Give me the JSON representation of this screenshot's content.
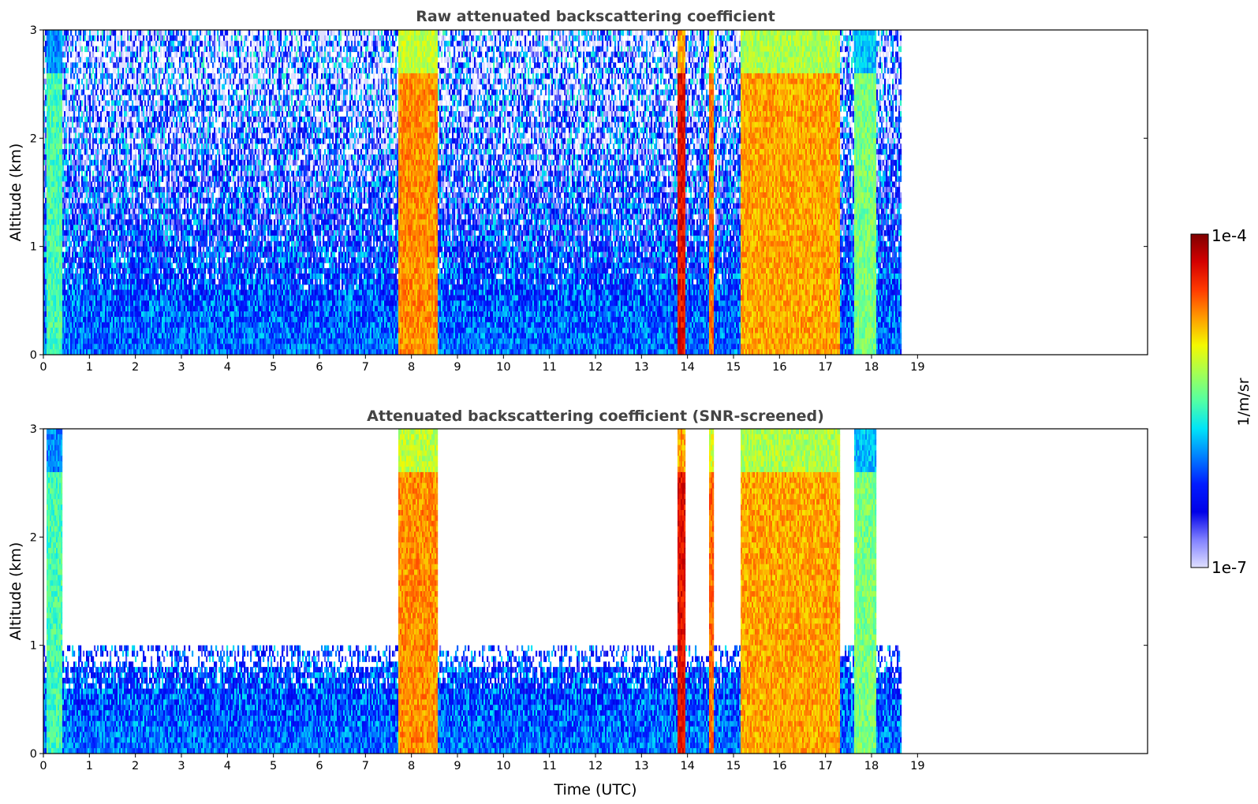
{
  "chart_data": [
    {
      "type": "heatmap",
      "title": "Raw attenuated backscattering coefficient",
      "ylabel": "Altitude (km)",
      "xlabel": "",
      "xlim": [
        0,
        24
      ],
      "ylim": [
        0,
        3
      ],
      "xticks": [
        "0",
        "1",
        "2",
        "3",
        "4",
        "5",
        "6",
        "7",
        "8",
        "9",
        "10",
        "11",
        "12",
        "13",
        "14",
        "15",
        "16",
        "17",
        "18",
        "19"
      ],
      "yticks": [
        "0",
        "1",
        "2",
        "3"
      ],
      "data_end_hour": 18.65,
      "cloud_columns": [
        {
          "start": 7.7,
          "end": 8.55,
          "level": 0.82
        },
        {
          "start": 13.75,
          "end": 13.95,
          "level": 0.95
        },
        {
          "start": 14.45,
          "end": 14.55,
          "level": 0.85
        },
        {
          "start": 15.15,
          "end": 17.3,
          "level": 0.8
        },
        {
          "start": 17.6,
          "end": 18.1,
          "level": 0.6
        },
        {
          "start": 0.05,
          "end": 0.4,
          "level": 0.55
        }
      ],
      "note_scale": "log"
    },
    {
      "type": "heatmap",
      "title": "Attenuated backscattering coefficient (SNR-screened)",
      "ylabel": "Altitude (km)",
      "xlabel": "Time (UTC)",
      "xlim": [
        0,
        24
      ],
      "ylim": [
        0,
        3
      ],
      "xticks": [
        "0",
        "1",
        "2",
        "3",
        "4",
        "5",
        "6",
        "7",
        "8",
        "9",
        "10",
        "11",
        "12",
        "13",
        "14",
        "15",
        "16",
        "17",
        "18",
        "19"
      ],
      "yticks": [
        "0",
        "1",
        "2",
        "3"
      ],
      "data_end_hour": 18.65
    }
  ],
  "colorbar": {
    "label": "1/m/sr",
    "max_label": "1e-4",
    "min_label": "1e-7",
    "colors": [
      "#7f0000",
      "#d40000",
      "#ff3a00",
      "#ff9b00",
      "#f4f900",
      "#a4ff53",
      "#53ffa4",
      "#00e4f8",
      "#0080ff",
      "#001cff",
      "#0000e8",
      "#8080ff",
      "#e0e0ff"
    ]
  }
}
